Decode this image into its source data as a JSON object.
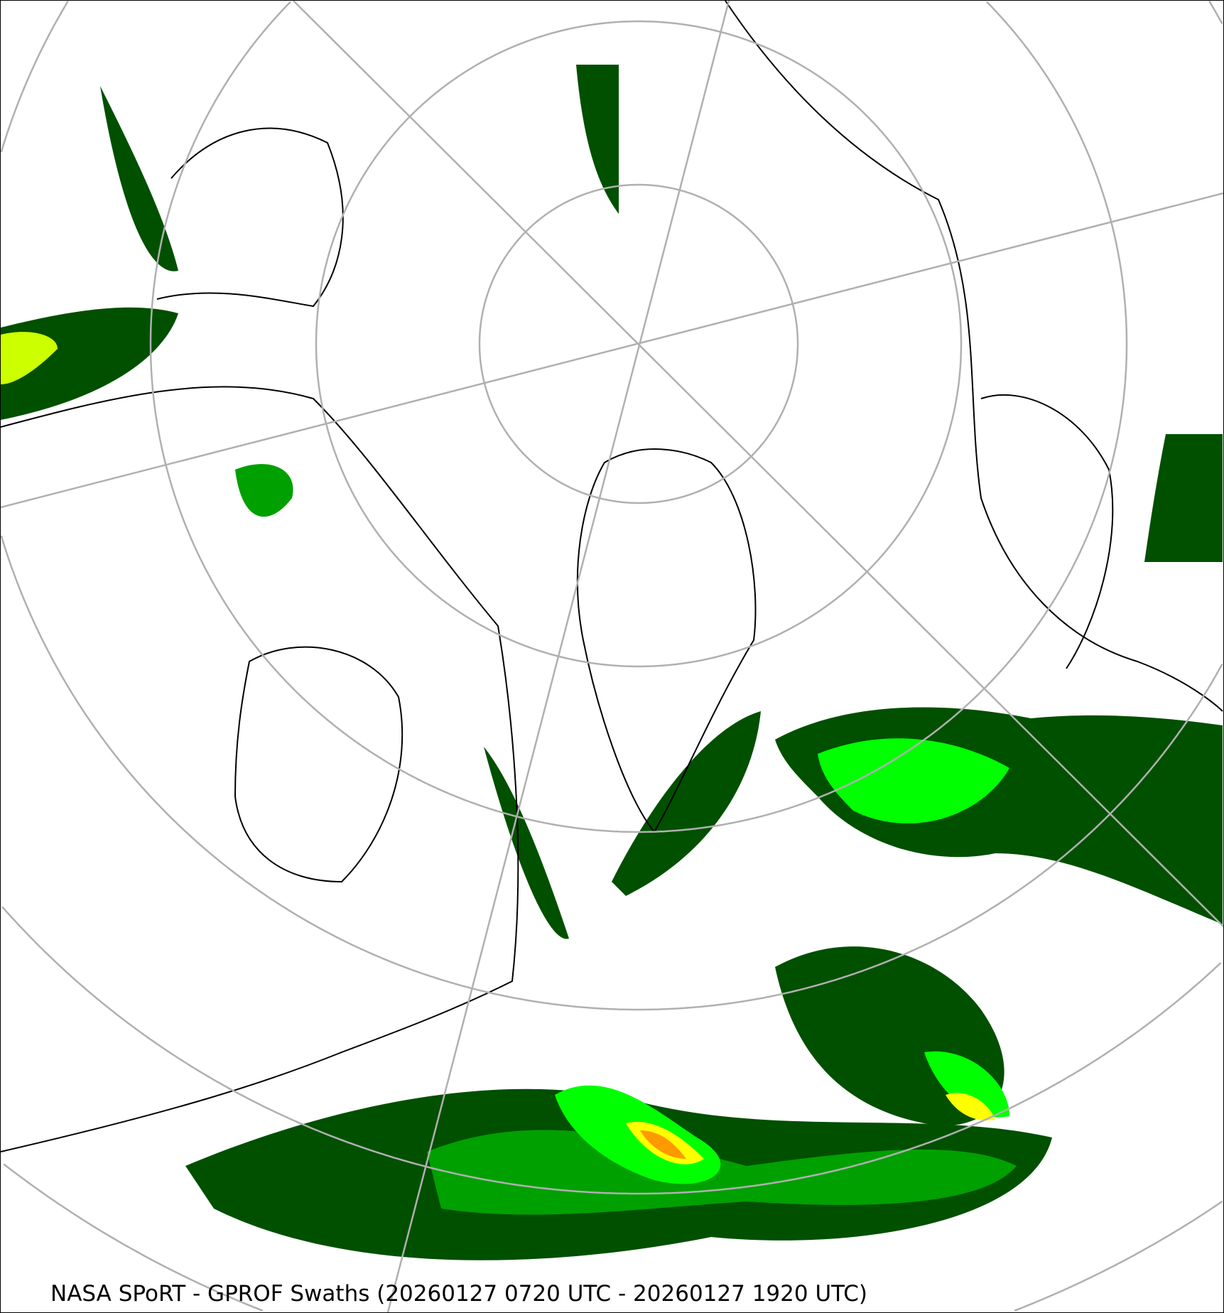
{
  "caption": "NASA SPoRT - GPROF Swaths (20260127 0720 UTC - 20260127 1920 UTC)",
  "projection": "north polar stereographic",
  "colors": {
    "background": "#ffffff",
    "graticule": "#b0b0b0",
    "coastline": "#000000",
    "precip_light": "#005000",
    "precip_mod": "#00a000",
    "precip_heavy": "#00ff00",
    "precip_vheavy": "#ccff00",
    "precip_intense": "#ffff00",
    "precip_extreme": "#ff9900"
  }
}
